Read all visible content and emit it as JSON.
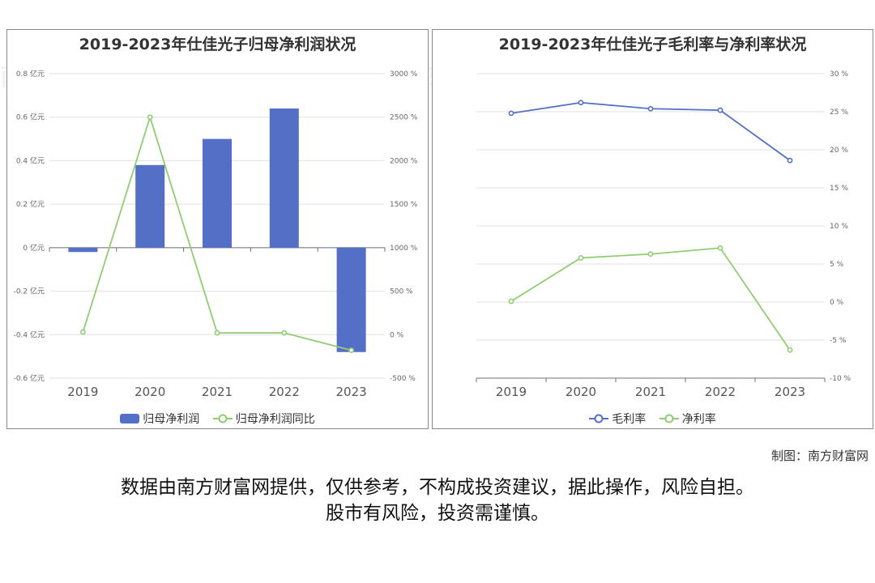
{
  "watermark": "南方财富网",
  "colors": {
    "bar": "#5470c6",
    "green": "#91cc75",
    "blue": "#5470c6",
    "grid": "#e0e0e0"
  },
  "left_chart": {
    "title": "2019-2023年仕佳光子归母净利润状况",
    "legend": [
      "归母净利润",
      "归母净利润同比"
    ]
  },
  "right_chart": {
    "title": "2019-2023年仕佳光子毛利率与净利率状况",
    "legend": [
      "毛利率",
      "净利率"
    ]
  },
  "chart_data": [
    {
      "type": "bar",
      "title": "2019-2023年仕佳光子归母净利润状况",
      "categories": [
        "2019",
        "2020",
        "2021",
        "2022",
        "2023"
      ],
      "series": [
        {
          "name": "归母净利润",
          "type": "bar",
          "axis": "left",
          "values": [
            -0.02,
            0.38,
            0.5,
            0.64,
            -0.48
          ]
        },
        {
          "name": "归母净利润同比",
          "type": "line",
          "axis": "right",
          "values": [
            30,
            2500,
            20,
            20,
            -180
          ]
        }
      ],
      "y_left": {
        "ylim": [
          -0.6,
          0.8
        ],
        "ticks": [
          -0.6,
          -0.4,
          -0.2,
          0,
          0.2,
          0.4,
          0.6,
          0.8
        ],
        "unit": " 亿元"
      },
      "y_right": {
        "ylim": [
          -500,
          3000
        ],
        "ticks": [
          -500,
          0,
          500,
          1000,
          1500,
          2000,
          2500,
          3000
        ],
        "unit": " %"
      },
      "grid": true,
      "legend_position": "bottom"
    },
    {
      "type": "line",
      "title": "2019-2023年仕佳光子毛利率与净利率状况",
      "categories": [
        "2019",
        "2020",
        "2021",
        "2022",
        "2023"
      ],
      "series": [
        {
          "name": "毛利率",
          "values": [
            24.8,
            26.2,
            25.4,
            25.2,
            18.6
          ]
        },
        {
          "name": "净利率",
          "values": [
            0.1,
            5.8,
            6.3,
            7.1,
            -6.3
          ]
        }
      ],
      "y_right": {
        "ylim": [
          -10,
          30
        ],
        "ticks": [
          -10,
          -5,
          0,
          5,
          10,
          15,
          20,
          25,
          30
        ],
        "unit": " %"
      },
      "grid": true,
      "legend_position": "bottom"
    }
  ],
  "credit": "制图：南方财富网",
  "disclaimer_line1": "数据由南方财富网提供，仅供参考，不构成投资建议，据此操作，风险自担。",
  "disclaimer_line2": "股市有风险，投资需谨慎。"
}
